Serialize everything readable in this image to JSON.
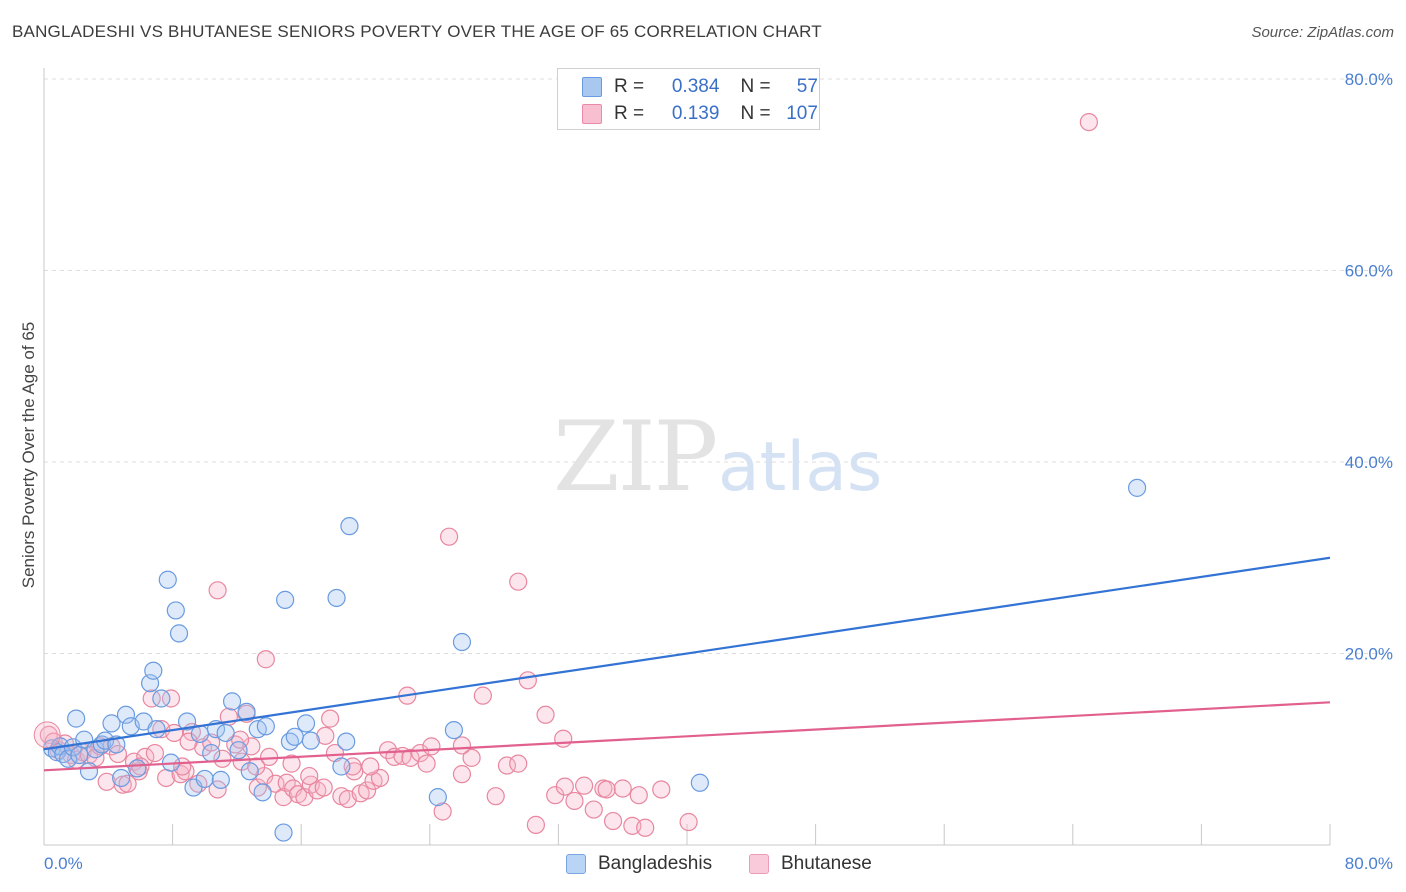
{
  "header": {
    "title": "BANGLADESHI VS BHUTANESE SENIORS POVERTY OVER THE AGE OF 65 CORRELATION CHART",
    "source": "Source: ZipAtlas.com"
  },
  "watermark": {
    "zip": "ZIP",
    "atlas": "atlas"
  },
  "legend": {
    "r_label": "R =",
    "n_label": "N =",
    "rows": [
      {
        "r": "0.384",
        "n": "57",
        "color": "#a9c8f0",
        "border": "#6a9be0"
      },
      {
        "r": "0.139",
        "n": "107",
        "color": "#f7bfd0",
        "border": "#e88aa8"
      }
    ]
  },
  "bottom_legend": [
    {
      "label": "Bangladeshis",
      "color": "#b9d4f5",
      "border": "#7aa5e4"
    },
    {
      "label": "Bhutanese",
      "color": "#f9cada",
      "border": "#ec9ab5"
    }
  ],
  "chart_data": {
    "type": "scatter",
    "ylabel": "Seniors Poverty Over the Age of 65",
    "xlim": [
      0,
      80
    ],
    "ylim": [
      0,
      80
    ],
    "x_tick_labels": [
      "0.0%",
      "80.0%"
    ],
    "y_tick_labels": [
      {
        "value": 20,
        "label": "20.0%"
      },
      {
        "value": 40,
        "label": "40.0%"
      },
      {
        "value": 60,
        "label": "60.0%"
      },
      {
        "value": 80,
        "label": "80.0%"
      }
    ],
    "grid": true,
    "series": [
      {
        "name": "Bangladeshis",
        "color": "#6a9be0",
        "fill": "rgba(160,195,240,0.35)",
        "trend": {
          "x": [
            0,
            80
          ],
          "y": [
            10.0,
            30.0
          ],
          "color": "#3273d4"
        },
        "points": [
          [
            0.5,
            10.1
          ],
          [
            0.8,
            9.7
          ],
          [
            1.0,
            10.3
          ],
          [
            1.2,
            9.5
          ],
          [
            1.5,
            9.0
          ],
          [
            1.8,
            10.2
          ],
          [
            2.0,
            13.2
          ],
          [
            2.2,
            9.4
          ],
          [
            2.5,
            11.0
          ],
          [
            2.8,
            7.7
          ],
          [
            3.2,
            10.0
          ],
          [
            3.6,
            10.5
          ],
          [
            3.8,
            10.9
          ],
          [
            4.2,
            12.7
          ],
          [
            4.5,
            10.5
          ],
          [
            4.8,
            7.0
          ],
          [
            5.1,
            13.6
          ],
          [
            5.4,
            12.4
          ],
          [
            5.8,
            8.0
          ],
          [
            6.2,
            12.9
          ],
          [
            6.6,
            16.9
          ],
          [
            6.8,
            18.2
          ],
          [
            7.0,
            12.1
          ],
          [
            7.3,
            15.3
          ],
          [
            7.7,
            27.7
          ],
          [
            7.9,
            8.6
          ],
          [
            8.2,
            24.5
          ],
          [
            8.4,
            22.1
          ],
          [
            8.9,
            12.9
          ],
          [
            9.3,
            6.0
          ],
          [
            9.7,
            11.6
          ],
          [
            10.0,
            6.9
          ],
          [
            10.4,
            9.6
          ],
          [
            10.7,
            12.1
          ],
          [
            11.0,
            6.8
          ],
          [
            11.3,
            11.7
          ],
          [
            11.7,
            15.0
          ],
          [
            12.1,
            9.9
          ],
          [
            12.6,
            13.9
          ],
          [
            12.8,
            7.7
          ],
          [
            13.3,
            12.1
          ],
          [
            13.6,
            5.5
          ],
          [
            13.8,
            12.4
          ],
          [
            15.0,
            25.6
          ],
          [
            15.3,
            10.8
          ],
          [
            15.6,
            11.3
          ],
          [
            16.3,
            12.7
          ],
          [
            16.6,
            10.9
          ],
          [
            18.2,
            25.8
          ],
          [
            18.5,
            8.2
          ],
          [
            18.8,
            10.8
          ],
          [
            19.0,
            33.3
          ],
          [
            14.9,
            1.3
          ],
          [
            24.5,
            5.0
          ],
          [
            25.5,
            12.0
          ],
          [
            26.0,
            21.2
          ],
          [
            68.0,
            37.3
          ],
          [
            40.8,
            6.5
          ]
        ]
      },
      {
        "name": "Bhutanese",
        "color": "#e8879f",
        "fill": "rgba(245,180,200,0.35)",
        "trend": {
          "x": [
            0,
            80
          ],
          "y": [
            7.8,
            14.9
          ],
          "color": "#e1608e"
        },
        "points": [
          [
            0.3,
            11.5
          ],
          [
            0.6,
            10.8
          ],
          [
            0.9,
            9.9
          ],
          [
            1.3,
            10.6
          ],
          [
            1.7,
            9.4
          ],
          [
            2.0,
            8.9
          ],
          [
            2.4,
            9.7
          ],
          [
            2.8,
            9.4
          ],
          [
            3.2,
            9.1
          ],
          [
            3.5,
            10.3
          ],
          [
            3.9,
            6.6
          ],
          [
            4.2,
            10.3
          ],
          [
            4.6,
            9.5
          ],
          [
            4.9,
            6.3
          ],
          [
            5.2,
            6.4
          ],
          [
            5.6,
            8.7
          ],
          [
            5.9,
            7.7
          ],
          [
            6.3,
            9.2
          ],
          [
            6.7,
            15.3
          ],
          [
            6.9,
            9.6
          ],
          [
            7.3,
            12.1
          ],
          [
            7.6,
            7.0
          ],
          [
            7.9,
            15.3
          ],
          [
            8.1,
            11.7
          ],
          [
            8.5,
            7.4
          ],
          [
            8.8,
            7.7
          ],
          [
            9.2,
            11.8
          ],
          [
            9.6,
            6.4
          ],
          [
            9.9,
            10.2
          ],
          [
            10.4,
            10.7
          ],
          [
            10.8,
            5.8
          ],
          [
            11.1,
            9.0
          ],
          [
            11.5,
            13.4
          ],
          [
            11.9,
            10.5
          ],
          [
            12.3,
            8.7
          ],
          [
            12.6,
            13.7
          ],
          [
            12.9,
            10.3
          ],
          [
            13.3,
            6.0
          ],
          [
            13.7,
            7.2
          ],
          [
            14.0,
            9.2
          ],
          [
            14.4,
            6.4
          ],
          [
            14.9,
            5.0
          ],
          [
            15.1,
            6.5
          ],
          [
            15.5,
            5.9
          ],
          [
            15.8,
            5.3
          ],
          [
            16.2,
            5.0
          ],
          [
            16.6,
            6.3
          ],
          [
            17.0,
            5.7
          ],
          [
            17.4,
            6.0
          ],
          [
            17.8,
            13.2
          ],
          [
            18.1,
            9.6
          ],
          [
            18.5,
            5.1
          ],
          [
            18.9,
            4.8
          ],
          [
            19.3,
            7.7
          ],
          [
            19.7,
            5.4
          ],
          [
            20.1,
            5.7
          ],
          [
            20.5,
            6.7
          ],
          [
            20.9,
            7.0
          ],
          [
            21.4,
            9.9
          ],
          [
            21.8,
            9.2
          ],
          [
            22.3,
            9.3
          ],
          [
            22.8,
            9.1
          ],
          [
            23.4,
            9.6
          ],
          [
            24.1,
            10.3
          ],
          [
            24.8,
            3.5
          ],
          [
            25.2,
            32.2
          ],
          [
            26.0,
            7.4
          ],
          [
            26.6,
            9.1
          ],
          [
            27.3,
            15.6
          ],
          [
            28.1,
            5.1
          ],
          [
            28.8,
            8.3
          ],
          [
            29.5,
            27.5
          ],
          [
            30.1,
            17.2
          ],
          [
            30.6,
            2.1
          ],
          [
            31.2,
            13.6
          ],
          [
            31.8,
            5.2
          ],
          [
            32.4,
            6.1
          ],
          [
            33.0,
            4.6
          ],
          [
            33.6,
            6.2
          ],
          [
            34.2,
            3.7
          ],
          [
            34.8,
            5.9
          ],
          [
            35.4,
            2.5
          ],
          [
            36.0,
            5.9
          ],
          [
            36.6,
            2.0
          ],
          [
            37.4,
            1.8
          ],
          [
            38.4,
            5.8
          ],
          [
            40.1,
            2.4
          ],
          [
            10.8,
            26.6
          ],
          [
            13.8,
            19.4
          ],
          [
            17.5,
            11.4
          ],
          [
            20.3,
            8.2
          ],
          [
            22.6,
            15.6
          ],
          [
            26.0,
            10.4
          ],
          [
            32.3,
            11.1
          ],
          [
            13.2,
            8.2
          ],
          [
            15.4,
            8.5
          ],
          [
            8.6,
            8.2
          ],
          [
            6.0,
            8.2
          ],
          [
            19.2,
            8.2
          ],
          [
            23.8,
            8.5
          ],
          [
            29.5,
            8.5
          ],
          [
            35.0,
            5.8
          ],
          [
            37.0,
            5.2
          ],
          [
            9.0,
            10.8
          ],
          [
            65.0,
            75.5
          ],
          [
            12.2,
            11.0
          ],
          [
            16.5,
            7.2
          ]
        ]
      }
    ]
  }
}
